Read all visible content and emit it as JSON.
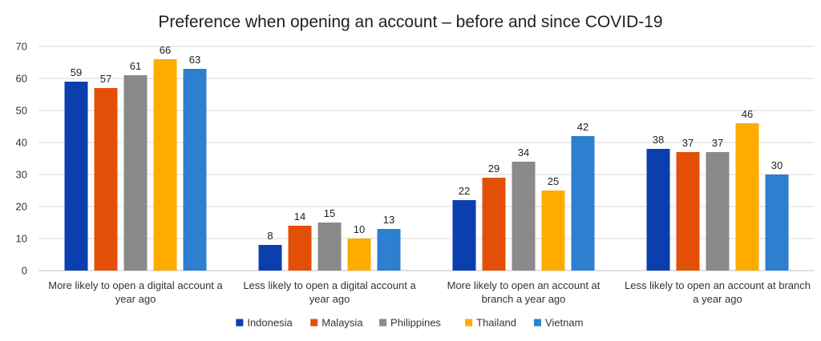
{
  "chart_data": {
    "type": "bar",
    "title": "Preference when opening an account – before and since COVID-19",
    "categories": [
      [
        "More likely to open a digital account a",
        "year ago"
      ],
      [
        "Less likely to open a digital account a",
        "year ago"
      ],
      [
        "More likely to open an account at",
        "branch a year ago"
      ],
      [
        "Less likely to open an account at branch",
        "a year ago"
      ]
    ],
    "series": [
      {
        "name": "Indonesia",
        "color": "#0b3fae",
        "values": [
          59,
          8,
          22,
          38
        ]
      },
      {
        "name": "Malaysia",
        "color": "#e34f07",
        "values": [
          57,
          14,
          29,
          37
        ]
      },
      {
        "name": "Philippines",
        "color": "#8a8a8a",
        "values": [
          61,
          15,
          34,
          37
        ]
      },
      {
        "name": "Thailand",
        "color": "#ffab00",
        "values": [
          66,
          10,
          25,
          46
        ]
      },
      {
        "name": "Vietnam",
        "color": "#2d7fcf",
        "values": [
          63,
          13,
          42,
          30
        ]
      }
    ],
    "ylim": [
      0,
      70
    ],
    "yticks": [
      0,
      10,
      20,
      30,
      40,
      50,
      60,
      70
    ],
    "grid": true,
    "legend_position": "bottom",
    "xlabel": "",
    "ylabel": ""
  }
}
